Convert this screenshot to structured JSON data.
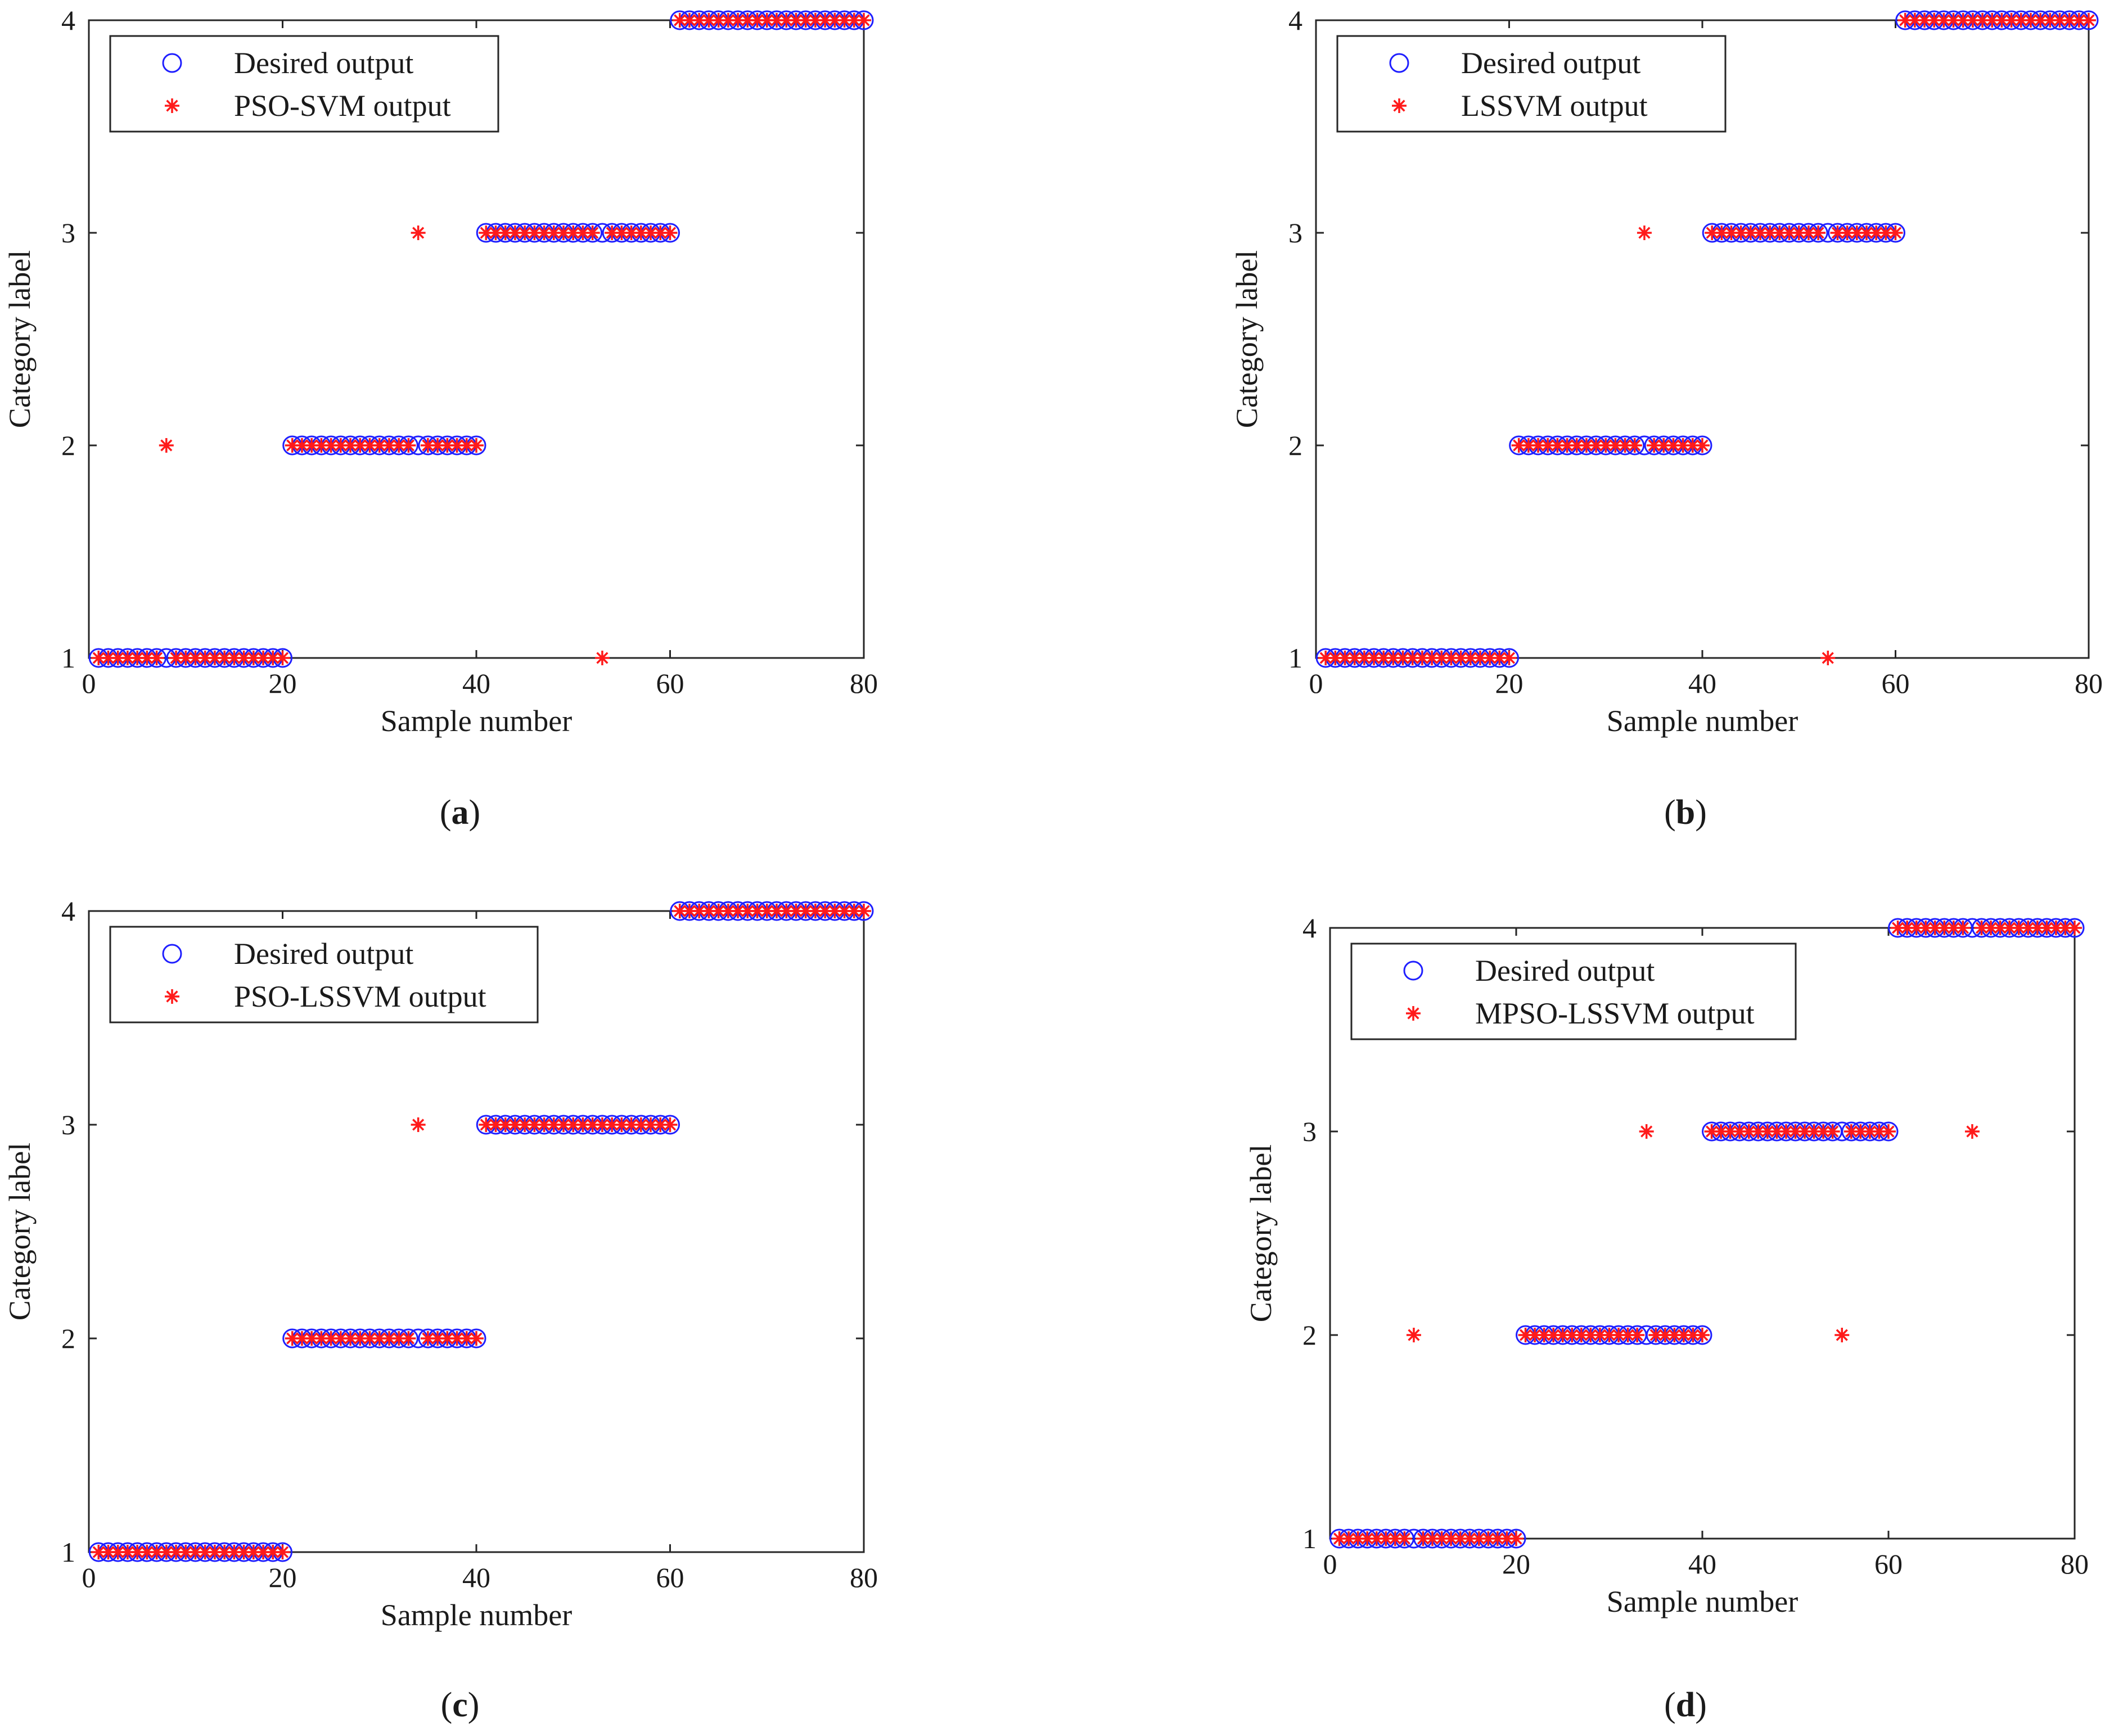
{
  "figure": {
    "colors": {
      "desired": "#1f1fff",
      "predicted": "#ff1a1a",
      "axes": "#262626"
    },
    "panels": [
      {
        "label": "a",
        "legend": {
          "desired": "Desired output",
          "predicted": "PSO-SVM output"
        }
      },
      {
        "label": "b",
        "legend": {
          "desired": "Desired output",
          "predicted": "LSSVM output"
        }
      },
      {
        "label": "c",
        "legend": {
          "desired": "Desired output",
          "predicted": "PSO-LSSVM output"
        }
      },
      {
        "label": "d",
        "legend": {
          "desired": "Desired output",
          "predicted": "MPSO-LSSVM output"
        }
      }
    ]
  },
  "chart_data": [
    {
      "type": "scatter",
      "panel": "a",
      "xlabel": "Sample number",
      "ylabel": "Category label",
      "xlim": [
        0,
        80
      ],
      "ylim": [
        1,
        4
      ],
      "xticks": [
        0,
        20,
        40,
        60,
        80
      ],
      "yticks": [
        1,
        2,
        3,
        4
      ],
      "legend_position": "top-left",
      "series": [
        {
          "name": "Desired output",
          "marker": "circle",
          "segments": [
            [
              1,
              20,
              1
            ],
            [
              21,
              40,
              2
            ],
            [
              41,
              60,
              3
            ],
            [
              61,
              80,
              4
            ]
          ]
        },
        {
          "name": "PSO-SVM output",
          "marker": "asterisk",
          "segments": [
            [
              1,
              20,
              1
            ],
            [
              21,
              40,
              2
            ],
            [
              41,
              60,
              3
            ],
            [
              61,
              80,
              4
            ]
          ],
          "overrides": [
            [
              8,
              2
            ],
            [
              34,
              3
            ],
            [
              53,
              1
            ]
          ]
        }
      ]
    },
    {
      "type": "scatter",
      "panel": "b",
      "xlabel": "Sample number",
      "ylabel": "Category label",
      "xlim": [
        0,
        80
      ],
      "ylim": [
        1,
        4
      ],
      "xticks": [
        0,
        20,
        40,
        60,
        80
      ],
      "yticks": [
        1,
        2,
        3,
        4
      ],
      "legend_position": "top-left",
      "series": [
        {
          "name": "Desired output",
          "marker": "circle",
          "segments": [
            [
              1,
              20,
              1
            ],
            [
              21,
              40,
              2
            ],
            [
              41,
              60,
              3
            ],
            [
              61,
              80,
              4
            ]
          ]
        },
        {
          "name": "LSSVM output",
          "marker": "asterisk",
          "segments": [
            [
              1,
              20,
              1
            ],
            [
              21,
              40,
              2
            ],
            [
              41,
              60,
              3
            ],
            [
              61,
              80,
              4
            ]
          ],
          "overrides": [
            [
              34,
              3
            ],
            [
              53,
              1
            ]
          ]
        }
      ]
    },
    {
      "type": "scatter",
      "panel": "c",
      "xlabel": "Sample number",
      "ylabel": "Category label",
      "xlim": [
        0,
        80
      ],
      "ylim": [
        1,
        4
      ],
      "xticks": [
        0,
        20,
        40,
        60,
        80
      ],
      "yticks": [
        1,
        2,
        3,
        4
      ],
      "legend_position": "top-left",
      "series": [
        {
          "name": "Desired output",
          "marker": "circle",
          "segments": [
            [
              1,
              20,
              1
            ],
            [
              21,
              40,
              2
            ],
            [
              41,
              60,
              3
            ],
            [
              61,
              80,
              4
            ]
          ]
        },
        {
          "name": "PSO-LSSVM output",
          "marker": "asterisk",
          "segments": [
            [
              1,
              20,
              1
            ],
            [
              21,
              40,
              2
            ],
            [
              41,
              60,
              3
            ],
            [
              61,
              80,
              4
            ]
          ],
          "overrides": [
            [
              34,
              3
            ]
          ]
        }
      ]
    },
    {
      "type": "scatter",
      "panel": "d",
      "xlabel": "Sample number",
      "ylabel": "Category label",
      "xlim": [
        0,
        80
      ],
      "ylim": [
        1,
        4
      ],
      "xticks": [
        0,
        20,
        40,
        60,
        80
      ],
      "yticks": [
        1,
        2,
        3,
        4
      ],
      "legend_position": "top-left",
      "series": [
        {
          "name": "Desired output",
          "marker": "circle",
          "segments": [
            [
              1,
              20,
              1
            ],
            [
              21,
              40,
              2
            ],
            [
              41,
              60,
              3
            ],
            [
              61,
              80,
              4
            ]
          ]
        },
        {
          "name": "MPSO-LSSVM output",
          "marker": "asterisk",
          "segments": [
            [
              1,
              20,
              1
            ],
            [
              21,
              40,
              2
            ],
            [
              41,
              60,
              3
            ],
            [
              61,
              80,
              4
            ]
          ],
          "overrides": [
            [
              9,
              2
            ],
            [
              34,
              3
            ],
            [
              55,
              2
            ],
            [
              69,
              3
            ]
          ]
        }
      ]
    }
  ]
}
